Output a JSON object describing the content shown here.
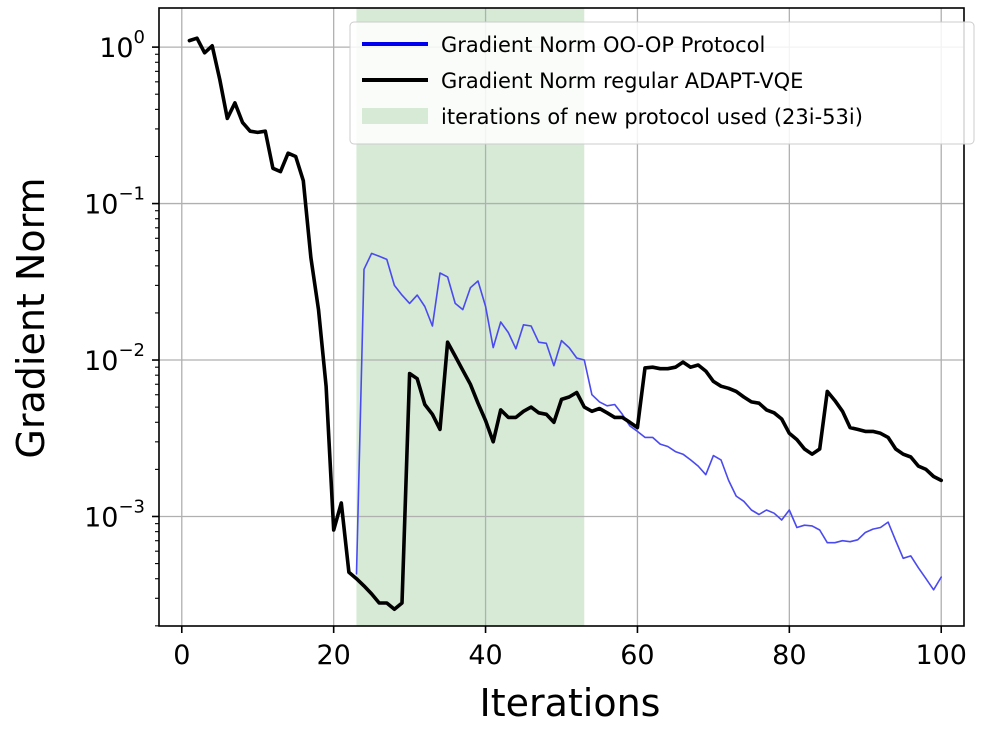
{
  "chart_data": {
    "type": "line",
    "yscale": "log",
    "xlabel": "Iterations",
    "ylabel": "Gradient Norm",
    "xlim": [
      -3,
      103
    ],
    "ylim_exp": [
      -3.7,
      0.25
    ],
    "xticks": [
      "0",
      "20",
      "40",
      "60",
      "80",
      "100"
    ],
    "xtick_values": [
      0,
      20,
      40,
      60,
      80,
      100
    ],
    "ytick_exponents": [
      0,
      -1,
      -2,
      -3
    ],
    "ytick_base": "10",
    "grid": true,
    "shaded_region": {
      "x_start": 23,
      "x_end": 53,
      "color": "#d6ead6",
      "label": "iterations of new protocol used (23i-53i)"
    },
    "legend_position": "top-right",
    "series": [
      {
        "name": "Gradient Norm OO-OP Protocol",
        "color": "#4a4af0",
        "legend_color": "#0000ee",
        "x": [
          23,
          24,
          25,
          26,
          27,
          28,
          29,
          30,
          31,
          32,
          33,
          34,
          35,
          36,
          37,
          38,
          39,
          40,
          41,
          42,
          43,
          44,
          45,
          46,
          47,
          48,
          49,
          50,
          51,
          52,
          53,
          54,
          55,
          56,
          57,
          58,
          59,
          60,
          61,
          62,
          63,
          64,
          65,
          66,
          67,
          68,
          69,
          70,
          71,
          72,
          73,
          74,
          75,
          76,
          77,
          78,
          79,
          80,
          81,
          82,
          83,
          84,
          85,
          86,
          87,
          88,
          89,
          90,
          91,
          92,
          93,
          94,
          95,
          96,
          97,
          98,
          99,
          100
        ],
        "y": [
          0.00043,
          0.038,
          0.048,
          0.046,
          0.044,
          0.03,
          0.026,
          0.023,
          0.026,
          0.022,
          0.0165,
          0.036,
          0.034,
          0.023,
          0.021,
          0.029,
          0.032,
          0.022,
          0.012,
          0.0175,
          0.015,
          0.0118,
          0.0168,
          0.0165,
          0.013,
          0.0128,
          0.0092,
          0.0133,
          0.012,
          0.0103,
          0.01,
          0.006,
          0.0054,
          0.0051,
          0.0052,
          0.0045,
          0.0038,
          0.0035,
          0.0032,
          0.0032,
          0.0029,
          0.0028,
          0.0026,
          0.0025,
          0.0023,
          0.0021,
          0.00185,
          0.00245,
          0.0023,
          0.0017,
          0.00135,
          0.00125,
          0.0011,
          0.00103,
          0.0011,
          0.00105,
          0.00095,
          0.0011,
          0.00085,
          0.00088,
          0.00087,
          0.00082,
          0.00068,
          0.00068,
          0.0007,
          0.00069,
          0.00071,
          0.00079,
          0.00083,
          0.00085,
          0.00092,
          0.0007,
          0.00054,
          0.00056,
          0.00047,
          0.0004,
          0.00034,
          0.00041
        ]
      },
      {
        "name": "Gradient Norm regular ADAPT-VQE",
        "color": "#000000",
        "legend_color": "#000000",
        "x": [
          1,
          2,
          3,
          4,
          5,
          6,
          7,
          8,
          9,
          10,
          11,
          12,
          13,
          14,
          15,
          16,
          17,
          18,
          19,
          20,
          21,
          22,
          23,
          24,
          25,
          26,
          27,
          28,
          29,
          30,
          31,
          32,
          33,
          34,
          35,
          36,
          37,
          38,
          39,
          40,
          41,
          42,
          43,
          44,
          45,
          46,
          47,
          48,
          49,
          50,
          51,
          52,
          53,
          54,
          55,
          56,
          57,
          58,
          59,
          60,
          61,
          62,
          63,
          64,
          65,
          66,
          67,
          68,
          69,
          70,
          71,
          72,
          73,
          74,
          75,
          76,
          77,
          78,
          79,
          80,
          81,
          82,
          83,
          84,
          85,
          86,
          87,
          88,
          89,
          90,
          91,
          92,
          93,
          94,
          95,
          96,
          97,
          98,
          99,
          100
        ],
        "y": [
          1.1,
          1.14,
          0.92,
          1.02,
          0.62,
          0.35,
          0.44,
          0.33,
          0.29,
          0.285,
          0.29,
          0.168,
          0.16,
          0.21,
          0.2,
          0.14,
          0.045,
          0.021,
          0.0068,
          0.00082,
          0.00122,
          0.00044,
          0.0004,
          0.00036,
          0.00032,
          0.00028,
          0.00028,
          0.000255,
          0.00028,
          0.0082,
          0.0076,
          0.0052,
          0.0045,
          0.0036,
          0.013,
          0.0106,
          0.0086,
          0.007,
          0.0053,
          0.0041,
          0.003,
          0.0048,
          0.0043,
          0.0043,
          0.0047,
          0.005,
          0.0046,
          0.0045,
          0.004,
          0.0056,
          0.0058,
          0.0062,
          0.005,
          0.0047,
          0.0049,
          0.0046,
          0.0043,
          0.0043,
          0.004,
          0.0037,
          0.0089,
          0.009,
          0.0088,
          0.0088,
          0.009,
          0.0097,
          0.009,
          0.0093,
          0.0085,
          0.0073,
          0.0068,
          0.0066,
          0.0063,
          0.0058,
          0.0054,
          0.0053,
          0.0048,
          0.0046,
          0.0042,
          0.0034,
          0.0031,
          0.0027,
          0.0025,
          0.0027,
          0.0063,
          0.0055,
          0.0047,
          0.0037,
          0.0036,
          0.0035,
          0.0035,
          0.0034,
          0.0032,
          0.0027,
          0.0025,
          0.0024,
          0.0021,
          0.002,
          0.0018,
          0.0017
        ]
      }
    ]
  }
}
